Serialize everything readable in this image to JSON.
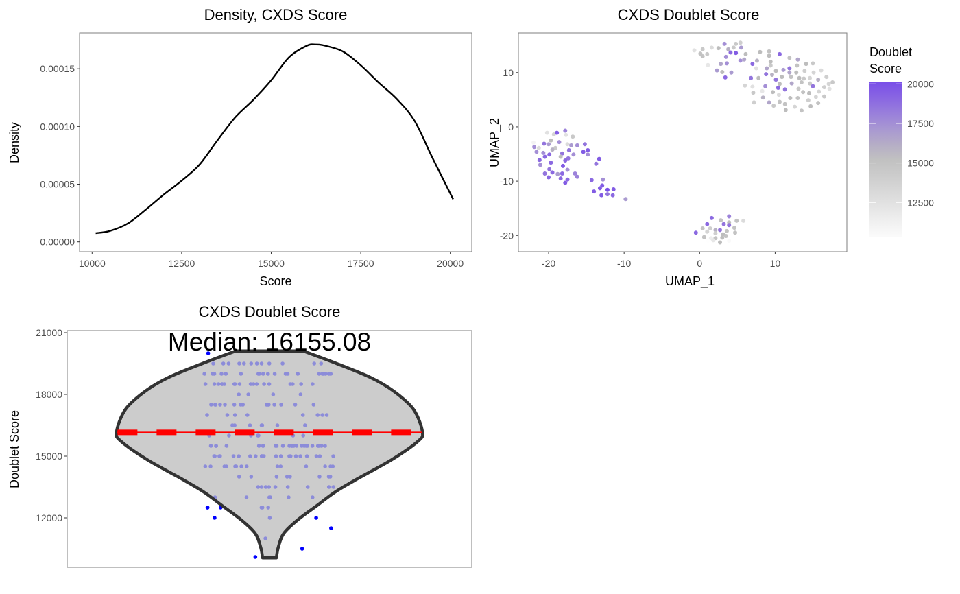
{
  "chart_data": [
    {
      "type": "line",
      "title": "Density, CXDS Score",
      "xlabel": "Score",
      "ylabel": "Density",
      "xlim": [
        9650,
        20600
      ],
      "ylim": [
        -8.5e-06,
        0.000181
      ],
      "xticks": [
        10000,
        12500,
        15000,
        17500,
        20000
      ],
      "xtick_labels": [
        "10000",
        "12500",
        "15000",
        "17500",
        "20000"
      ],
      "yticks": [
        0,
        5e-05,
        0.0001,
        0.00015
      ],
      "ytick_labels": [
        "0.00000",
        "0.00005",
        "0.00010",
        "0.00015"
      ],
      "grid": false,
      "x": [
        10100,
        10500,
        11000,
        11500,
        12000,
        12500,
        13000,
        13500,
        14000,
        14500,
        15000,
        15500,
        16000,
        16250,
        16500,
        17000,
        17500,
        18000,
        18500,
        19000,
        19500,
        20080
      ],
      "y": [
        7.5e-06,
        9.5e-06,
        1.6e-05,
        2.8e-05,
        4.1e-05,
        5.3e-05,
        6.7e-05,
        8.8e-05,
        0.000108,
        0.000123,
        0.00014,
        0.00016,
        0.00017,
        0.000171,
        0.00017,
        0.000165,
        0.000153,
        0.000138,
        0.000124,
        0.000105,
        7.3e-05,
        3.7e-05
      ],
      "line_color": "#000000"
    },
    {
      "type": "scatter",
      "title": "CXDS Doublet Score",
      "xlabel": "UMAP_1",
      "ylabel": "UMAP_2",
      "xlim": [
        -24,
        19.5
      ],
      "ylim": [
        -23,
        17.3
      ],
      "xticks": [
        -20,
        -10,
        0,
        10
      ],
      "xtick_labels": [
        "-20",
        "-10",
        "0",
        "10"
      ],
      "yticks": [
        -20,
        -10,
        0,
        10
      ],
      "ytick_labels": [
        "-20",
        "-10",
        "0",
        "10"
      ],
      "grid": false,
      "legend": {
        "title_lines": [
          "Doublet",
          "Score"
        ],
        "placement": "right",
        "ticks": [
          20000,
          17500,
          15000,
          12500
        ],
        "tick_labels": [
          "20000",
          "17500",
          "15000",
          "12500"
        ],
        "range": [
          10300,
          20100
        ]
      },
      "color_scale": [
        {
          "value": 10000,
          "color": "#ffffff"
        },
        {
          "value": 15500,
          "color": "#bdbdbd"
        },
        {
          "value": 17500,
          "color": "#a48fd6"
        },
        {
          "value": 20000,
          "color": "#7a4fe8"
        }
      ],
      "points_columns": [
        "UMAP_1",
        "UMAP_2",
        "Doublet Score"
      ],
      "points": [
        [
          -0.7,
          14.1,
          12500
        ],
        [
          0.4,
          14.3,
          14500
        ],
        [
          0.1,
          13.5,
          15000
        ],
        [
          1.0,
          13.4,
          14500
        ],
        [
          0.4,
          13.0,
          15000
        ],
        [
          1.6,
          14.6,
          13000
        ],
        [
          1.1,
          11.4,
          12000
        ],
        [
          2.5,
          14.5,
          15500
        ],
        [
          3.3,
          15.3,
          17500
        ],
        [
          3.8,
          14.3,
          16000
        ],
        [
          4.5,
          14.6,
          14500
        ],
        [
          4.8,
          15.3,
          14500
        ],
        [
          5.4,
          15.5,
          14000
        ],
        [
          4.1,
          13.7,
          19000
        ],
        [
          4.8,
          13.6,
          19500
        ],
        [
          5.5,
          14.6,
          17000
        ],
        [
          6.1,
          13.4,
          15500
        ],
        [
          3.5,
          12.9,
          17500
        ],
        [
          2.8,
          11.6,
          16500
        ],
        [
          3.6,
          11.7,
          17500
        ],
        [
          2.3,
          10.4,
          17000
        ],
        [
          3.0,
          10.1,
          15500
        ],
        [
          4.2,
          10.0,
          17000
        ],
        [
          3.4,
          9.1,
          19000
        ],
        [
          5.4,
          12.2,
          17500
        ],
        [
          5.9,
          12.4,
          16500
        ],
        [
          7.0,
          11.6,
          19000
        ],
        [
          7.6,
          12.2,
          16000
        ],
        [
          8.0,
          13.8,
          15500
        ],
        [
          9.2,
          13.9,
          15000
        ],
        [
          9.2,
          13.1,
          15500
        ],
        [
          10.6,
          13.4,
          19000
        ],
        [
          9.4,
          12.0,
          15500
        ],
        [
          9.4,
          11.3,
          14500
        ],
        [
          7.5,
          10.8,
          12500
        ],
        [
          8.9,
          10.8,
          16500
        ],
        [
          10.1,
          10.3,
          15500
        ],
        [
          11.1,
          10.5,
          17000
        ],
        [
          11.9,
          10.8,
          18500
        ],
        [
          11.9,
          10.0,
          16500
        ],
        [
          12.9,
          11.3,
          15000
        ],
        [
          13.0,
          12.4,
          16500
        ],
        [
          11.9,
          12.7,
          15000
        ],
        [
          14.1,
          11.6,
          15500
        ],
        [
          15.0,
          11.7,
          14500
        ],
        [
          13.9,
          10.3,
          14000
        ],
        [
          15.1,
          10.0,
          13500
        ],
        [
          6.8,
          9.0,
          18500
        ],
        [
          7.8,
          9.0,
          15500
        ],
        [
          8.8,
          9.7,
          18500
        ],
        [
          9.6,
          9.6,
          16000
        ],
        [
          10.9,
          9.2,
          15500
        ],
        [
          10.1,
          8.7,
          18500
        ],
        [
          12.1,
          9.2,
          15000
        ],
        [
          12.8,
          10.0,
          15500
        ],
        [
          13.2,
          9.0,
          15500
        ],
        [
          13.8,
          8.9,
          14500
        ],
        [
          14.6,
          9.0,
          13500
        ],
        [
          15.7,
          8.7,
          16000
        ],
        [
          16.1,
          10.4,
          13000
        ],
        [
          16.8,
          9.2,
          14000
        ],
        [
          17.6,
          8.2,
          14500
        ],
        [
          17.1,
          7.9,
          13500
        ],
        [
          6.0,
          7.6,
          13500
        ],
        [
          7.0,
          7.4,
          12500
        ],
        [
          8.7,
          7.5,
          17500
        ],
        [
          10.6,
          7.9,
          15500
        ],
        [
          12.2,
          8.0,
          16500
        ],
        [
          13.5,
          8.2,
          15000
        ],
        [
          14.6,
          8.0,
          14500
        ],
        [
          15.0,
          7.5,
          18500
        ],
        [
          10.4,
          7.2,
          19000
        ],
        [
          11.3,
          6.9,
          18500
        ],
        [
          9.7,
          6.4,
          15500
        ],
        [
          8.3,
          6.6,
          12000
        ],
        [
          7.1,
          6.3,
          14500
        ],
        [
          13.1,
          7.0,
          14500
        ],
        [
          13.7,
          6.4,
          15000
        ],
        [
          14.5,
          6.2,
          15500
        ],
        [
          15.8,
          6.5,
          13500
        ],
        [
          16.5,
          7.3,
          14000
        ],
        [
          17.2,
          7.0,
          12500
        ],
        [
          10.5,
          5.9,
          13000
        ],
        [
          8.4,
          5.4,
          16000
        ],
        [
          9.2,
          4.5,
          16500
        ],
        [
          10.6,
          4.6,
          15000
        ],
        [
          12.0,
          5.3,
          15500
        ],
        [
          13.0,
          5.3,
          15000
        ],
        [
          14.4,
          4.9,
          14000
        ],
        [
          15.4,
          5.5,
          13500
        ],
        [
          16.5,
          5.6,
          14500
        ],
        [
          7.2,
          4.5,
          14000
        ],
        [
          9.8,
          3.9,
          14500
        ],
        [
          11.3,
          4.2,
          15000
        ],
        [
          11.4,
          3.1,
          15500
        ],
        [
          12.6,
          3.7,
          13500
        ],
        [
          13.5,
          3.0,
          15000
        ],
        [
          14.7,
          3.8,
          15500
        ],
        [
          15.7,
          4.4,
          15000
        ],
        [
          -22.0,
          -2.9,
          11000
        ],
        [
          -20.2,
          -1.1,
          12500
        ],
        [
          -19.3,
          -1.4,
          13500
        ],
        [
          -18.9,
          -1.1,
          19500
        ],
        [
          -17.8,
          -0.7,
          18000
        ],
        [
          -17.7,
          -1.5,
          12500
        ],
        [
          -16.8,
          -1.8,
          14500
        ],
        [
          -19.7,
          -2.5,
          15500
        ],
        [
          -18.6,
          -2.8,
          17500
        ],
        [
          -20.6,
          -3.1,
          18500
        ],
        [
          -20.0,
          -3.2,
          17000
        ],
        [
          -21.9,
          -3.7,
          17500
        ],
        [
          -21.3,
          -3.9,
          13000
        ],
        [
          -19.1,
          -3.9,
          14500
        ],
        [
          -19.5,
          -4.2,
          16000
        ],
        [
          -17.5,
          -3.2,
          13000
        ],
        [
          -17.0,
          -3.4,
          17000
        ],
        [
          -16.2,
          -3.4,
          17500
        ],
        [
          -15.2,
          -3.2,
          18500
        ],
        [
          -14.8,
          -4.3,
          19500
        ],
        [
          -15.4,
          -4.6,
          19500
        ],
        [
          -14.8,
          -5.1,
          17500
        ],
        [
          -21.6,
          -4.6,
          17500
        ],
        [
          -20.7,
          -4.8,
          17500
        ],
        [
          -19.9,
          -5.1,
          19000
        ],
        [
          -20.5,
          -5.5,
          19000
        ],
        [
          -18.2,
          -4.9,
          18500
        ],
        [
          -17.3,
          -4.3,
          18500
        ],
        [
          -16.7,
          -5.1,
          17500
        ],
        [
          -18.4,
          -5.5,
          15500
        ],
        [
          -17.4,
          -5.8,
          18500
        ],
        [
          -17.8,
          -6.2,
          19000
        ],
        [
          -21.2,
          -6.1,
          19000
        ],
        [
          -19.7,
          -6.6,
          19000
        ],
        [
          -21.1,
          -7.0,
          17500
        ],
        [
          -18.1,
          -7.2,
          19500
        ],
        [
          -19.9,
          -7.8,
          18500
        ],
        [
          -17.5,
          -7.9,
          17500
        ],
        [
          -19.5,
          -8.4,
          19000
        ],
        [
          -20.5,
          -8.6,
          18500
        ],
        [
          -18.8,
          -8.7,
          17000
        ],
        [
          -18.2,
          -8.6,
          19000
        ],
        [
          -16.5,
          -8.6,
          18000
        ],
        [
          -16.2,
          -9.2,
          18000
        ],
        [
          -20.0,
          -9.3,
          19000
        ],
        [
          -18.4,
          -9.5,
          19000
        ],
        [
          -17.5,
          -9.7,
          19000
        ],
        [
          -17.8,
          -10.3,
          19500
        ],
        [
          -13.3,
          -5.9,
          19500
        ],
        [
          -13.7,
          -6.8,
          18500
        ],
        [
          -14.3,
          -9.8,
          19000
        ],
        [
          -12.8,
          -9.7,
          17500
        ],
        [
          -12.9,
          -10.8,
          19500
        ],
        [
          -13.2,
          -11.3,
          19500
        ],
        [
          -14.0,
          -11.9,
          19500
        ],
        [
          -12.2,
          -11.6,
          20000
        ],
        [
          -11.4,
          -11.5,
          19500
        ],
        [
          -13.0,
          -12.6,
          19500
        ],
        [
          -12.2,
          -12.4,
          18500
        ],
        [
          -11.5,
          -12.6,
          19000
        ],
        [
          -9.8,
          -13.3,
          17000
        ],
        [
          3.9,
          -16.5,
          18000
        ],
        [
          1.6,
          -16.8,
          19000
        ],
        [
          2.8,
          -17.2,
          15000
        ],
        [
          3.9,
          -17.6,
          15500
        ],
        [
          4.9,
          -17.3,
          15000
        ],
        [
          5.8,
          -17.3,
          13000
        ],
        [
          1.0,
          -17.9,
          19000
        ],
        [
          3.2,
          -17.9,
          18500
        ],
        [
          3.9,
          -18.1,
          18500
        ],
        [
          1.4,
          -18.7,
          14000
        ],
        [
          0.4,
          -18.7,
          15000
        ],
        [
          2.1,
          -19.0,
          16000
        ],
        [
          2.7,
          -19.0,
          18500
        ],
        [
          3.6,
          -19.2,
          15000
        ],
        [
          4.6,
          -18.6,
          15000
        ],
        [
          -0.5,
          -19.5,
          19000
        ],
        [
          1.0,
          -19.3,
          13500
        ],
        [
          4.7,
          -19.5,
          15000
        ],
        [
          2.1,
          -19.6,
          14000
        ],
        [
          3.1,
          -19.8,
          15500
        ],
        [
          3.5,
          -20.1,
          15000
        ],
        [
          0.6,
          -20.3,
          15000
        ],
        [
          1.5,
          -20.5,
          11500
        ],
        [
          3.0,
          -20.4,
          15500
        ],
        [
          2.1,
          -20.5,
          15000
        ],
        [
          1.1,
          -21.0,
          10100
        ],
        [
          3.9,
          -21.0,
          10500
        ],
        [
          2.7,
          -21.3,
          15500
        ],
        [
          1.8,
          -20.9,
          12000
        ]
      ]
    },
    {
      "type": "violin",
      "title": "CXDS Doublet Score",
      "ylabel": "Doublet Score",
      "xlabel": "",
      "annotation": "Median: 16155.08",
      "median": 16155.08,
      "ylim": [
        9600,
        21100
      ],
      "yticks": [
        12000,
        15000,
        18000,
        21000
      ],
      "ytick_labels": [
        "12000",
        "15000",
        "18000",
        "21000"
      ],
      "grid": false,
      "violin_fill": "#cccccc",
      "violin_outline": "#333333",
      "median_line_color": "#ff0000",
      "point_color": "#0000ff",
      "density_profile": {
        "score": [
          10060,
          10580,
          11250,
          11920,
          12590,
          13260,
          13930,
          14820,
          15710,
          16180,
          17270,
          18160,
          18830,
          19500,
          20110
        ],
        "relative_width": [
          0.045,
          0.058,
          0.094,
          0.188,
          0.309,
          0.43,
          0.583,
          0.798,
          0.969,
          1.0,
          0.942,
          0.812,
          0.659,
          0.439,
          0.22
        ]
      }
    }
  ]
}
